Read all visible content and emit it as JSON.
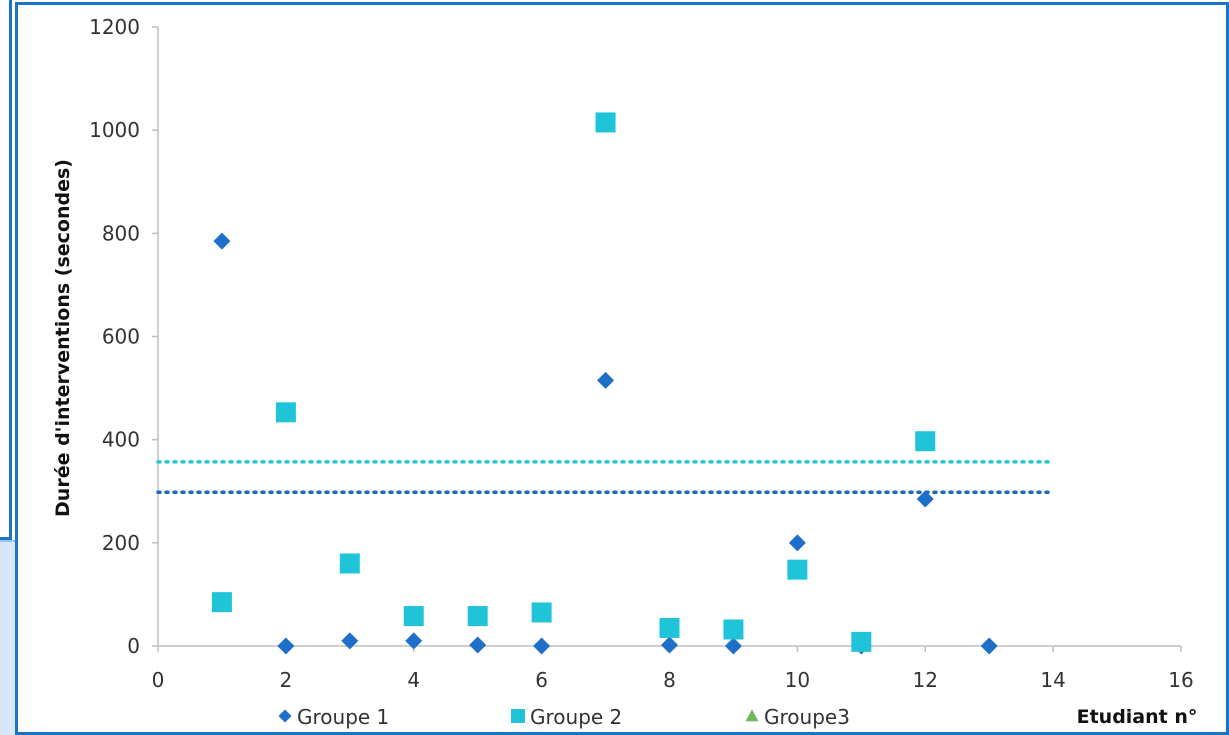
{
  "chart_data": {
    "type": "scatter",
    "xlabel": "Etudiant n°",
    "ylabel": "Durée d'interventions (secondes)",
    "xlim": [
      0,
      16
    ],
    "ylim": [
      0,
      1200
    ],
    "xticks": [
      0,
      2,
      4,
      6,
      8,
      10,
      12,
      14,
      16
    ],
    "yticks": [
      0,
      200,
      400,
      600,
      800,
      1000,
      1200
    ],
    "grid": false,
    "legend_position": "bottom",
    "series": [
      {
        "name": "Groupe 1",
        "marker": "diamond",
        "color": "#1e6fc8",
        "points": [
          [
            1,
            785
          ],
          [
            2,
            0
          ],
          [
            3,
            10
          ],
          [
            4,
            10
          ],
          [
            5,
            2
          ],
          [
            6,
            0
          ],
          [
            7,
            515
          ],
          [
            8,
            2
          ],
          [
            9,
            0
          ],
          [
            10,
            200
          ],
          [
            11,
            0
          ],
          [
            12,
            285
          ],
          [
            13,
            0
          ]
        ]
      },
      {
        "name": "Groupe 2",
        "marker": "square",
        "color": "#20c4d8",
        "points": [
          [
            1,
            85
          ],
          [
            2,
            453
          ],
          [
            3,
            160
          ],
          [
            4,
            58
          ],
          [
            5,
            58
          ],
          [
            6,
            65
          ],
          [
            7,
            1015
          ],
          [
            8,
            35
          ],
          [
            9,
            32
          ],
          [
            10,
            148
          ],
          [
            11,
            8
          ],
          [
            12,
            397
          ]
        ]
      },
      {
        "name": "Groupe3",
        "marker": "triangle",
        "color": "#70b85a",
        "points": []
      }
    ],
    "reference_lines": [
      {
        "y": 357,
        "color": "#2bc6d6",
        "style": "dotted"
      },
      {
        "y": 298,
        "color": "#1d67bd",
        "style": "dotted"
      }
    ],
    "reference_line_xrange": [
      0,
      14
    ]
  }
}
